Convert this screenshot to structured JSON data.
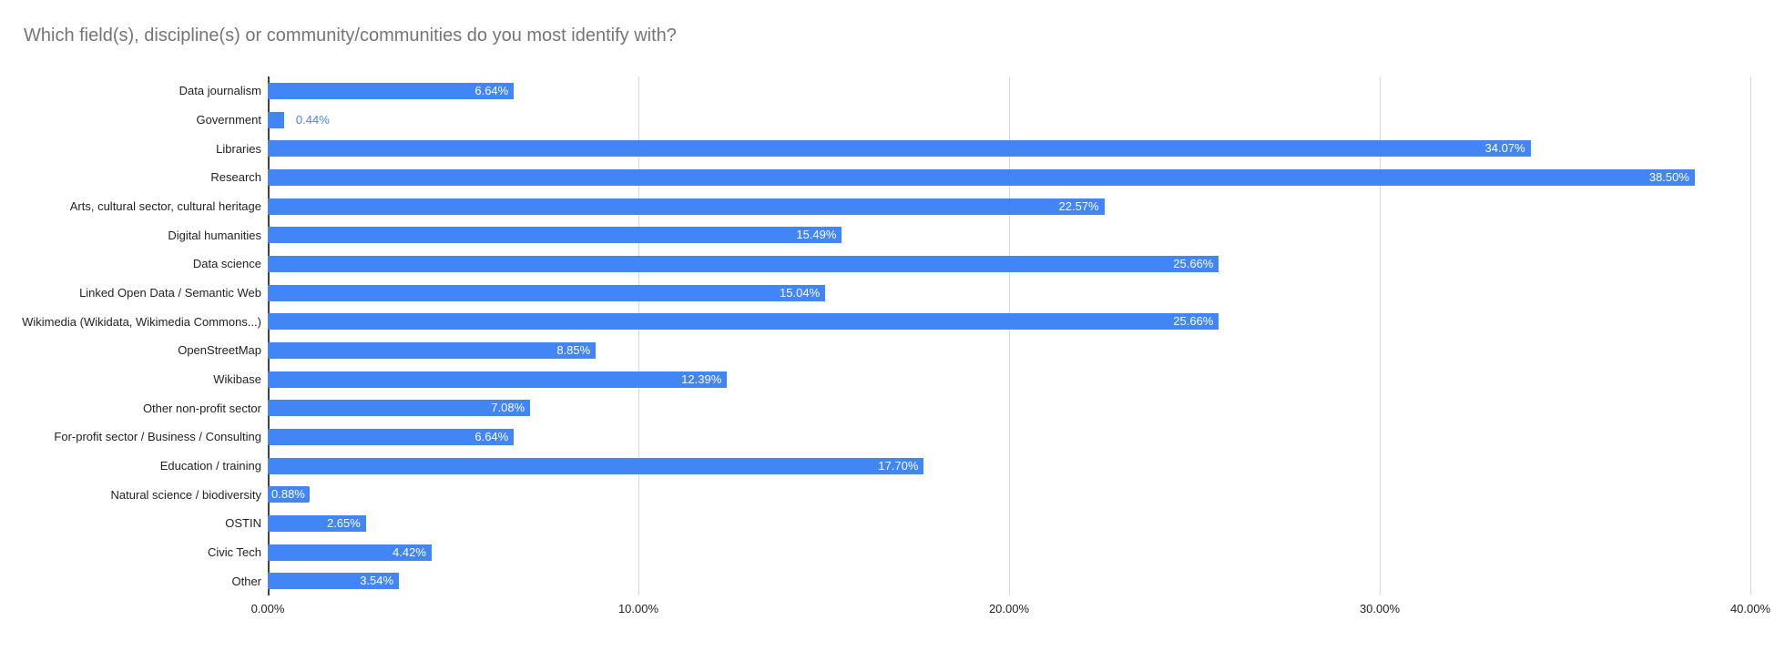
{
  "chart_data": {
    "type": "bar",
    "orientation": "horizontal",
    "title": "Which field(s), discipline(s) or community/communities do you most identify with?",
    "categories": [
      "Data journalism",
      "Government",
      "Libraries",
      "Research",
      "Arts, cultural sector, cultural heritage",
      "Digital humanities",
      "Data science",
      "Linked Open Data / Semantic Web",
      "Wikimedia (Wikidata, Wikimedia Commons...)",
      "OpenStreetMap",
      "Wikibase",
      "Other non-profit sector",
      "For-profit sector / Business / Consulting",
      "Education / training",
      "Natural science / biodiversity",
      "OSTIN",
      "Civic Tech",
      "Other"
    ],
    "values": [
      6.64,
      0.44,
      34.07,
      38.5,
      22.57,
      15.49,
      25.66,
      15.04,
      25.66,
      8.85,
      12.39,
      7.08,
      6.64,
      17.7,
      0.88,
      2.65,
      4.42,
      3.54
    ],
    "value_labels": [
      "6.64%",
      "0.44%",
      "34.07%",
      "38.50%",
      "22.57%",
      "15.49%",
      "25.66%",
      "15.04%",
      "25.66%",
      "8.85%",
      "12.39%",
      "7.08%",
      "6.64%",
      "17.70%",
      "0.88%",
      "2.65%",
      "4.42%",
      "3.54%"
    ],
    "label_placements": [
      "inside",
      "outside",
      "inside",
      "inside",
      "inside",
      "inside",
      "inside",
      "inside",
      "inside",
      "inside",
      "inside",
      "inside",
      "inside",
      "inside",
      "chip",
      "inside",
      "inside",
      "inside"
    ],
    "xlim": [
      0,
      40
    ],
    "x_ticks": [
      "0.00%",
      "10.00%",
      "20.00%",
      "30.00%",
      "40.00%"
    ],
    "x_tick_values": [
      0,
      10,
      20,
      30,
      40
    ],
    "grid": true,
    "legend": "none",
    "colors": {
      "bar": "#4285f4",
      "value_label_inside": "#ffffff",
      "value_label_outside": "#4285f4",
      "title_text": "#757575",
      "axis_text": "#222222",
      "gridline": "#d9d9d9",
      "baseline": "#424242",
      "background": "#ffffff"
    }
  }
}
